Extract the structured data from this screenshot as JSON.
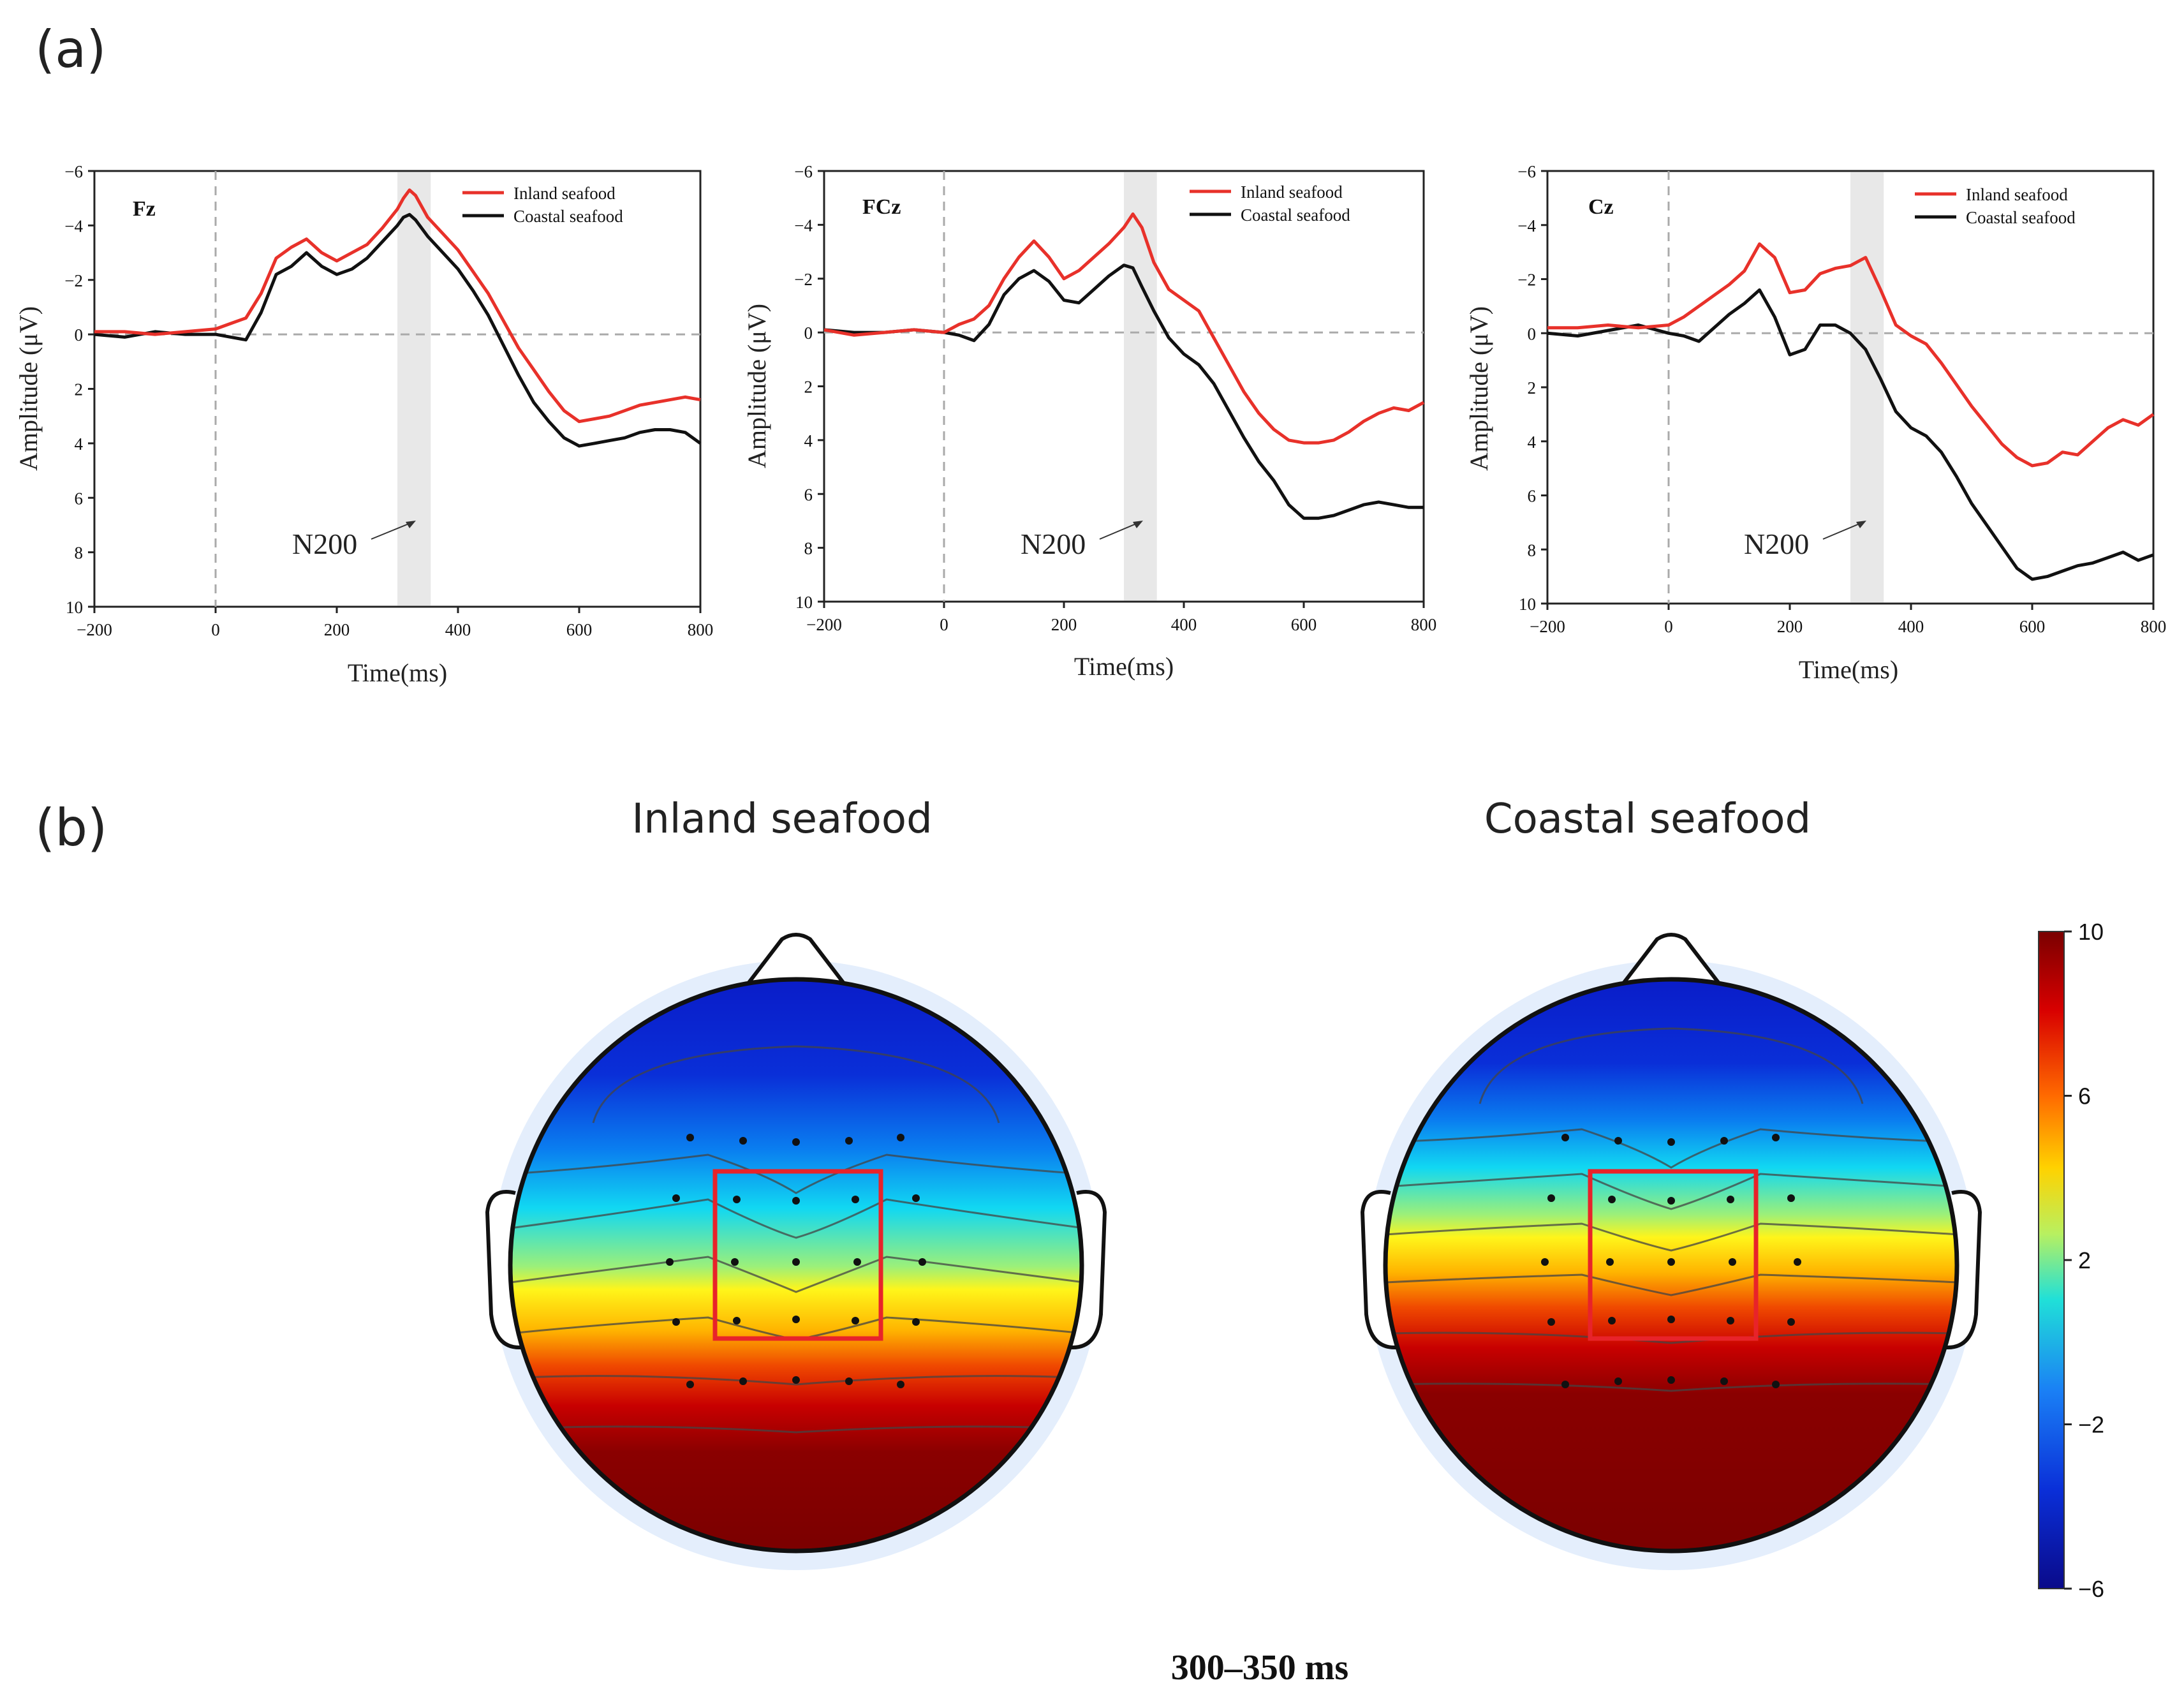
{
  "panel_a_label": "(a)",
  "panel_b_label": "(b)",
  "chart_data": [
    {
      "type": "line",
      "electrode": "Fz",
      "xlabel": "Time(ms)",
      "ylabel": "Amplitude (μV)",
      "xlim": [
        -200,
        800
      ],
      "ylim": [
        -6,
        10
      ],
      "y_inverted": true,
      "x_ticks": [
        "−200",
        "0",
        "200",
        "400",
        "600",
        "800"
      ],
      "y_ticks": [
        "−6",
        "−4",
        "−2",
        "0",
        "2",
        "4",
        "6",
        "8",
        "10"
      ],
      "shaded_window": [
        300,
        355
      ],
      "annotation": "N200",
      "series": [
        {
          "name": "Inland seafood",
          "color": "#e8312a",
          "x": [
            -200,
            -150,
            -100,
            -50,
            0,
            25,
            50,
            75,
            100,
            125,
            150,
            175,
            200,
            225,
            250,
            275,
            300,
            310,
            320,
            330,
            350,
            375,
            400,
            425,
            450,
            475,
            500,
            525,
            550,
            575,
            600,
            625,
            650,
            675,
            700,
            725,
            750,
            775,
            800
          ],
          "y": [
            -0.1,
            -0.1,
            0,
            -0.1,
            -0.2,
            -0.4,
            -0.6,
            -1.5,
            -2.8,
            -3.2,
            -3.5,
            -3.0,
            -2.7,
            -3.0,
            -3.3,
            -3.9,
            -4.6,
            -5.0,
            -5.3,
            -5.1,
            -4.3,
            -3.7,
            -3.1,
            -2.3,
            -1.5,
            -0.5,
            0.5,
            1.3,
            2.1,
            2.8,
            3.2,
            3.1,
            3.0,
            2.8,
            2.6,
            2.5,
            2.4,
            2.3,
            2.4
          ]
        },
        {
          "name": "Coastal seafood",
          "color": "#111111",
          "x": [
            -200,
            -150,
            -100,
            -50,
            0,
            25,
            50,
            75,
            100,
            125,
            150,
            175,
            200,
            225,
            250,
            275,
            300,
            310,
            320,
            330,
            350,
            375,
            400,
            425,
            450,
            475,
            500,
            525,
            550,
            575,
            600,
            625,
            650,
            675,
            700,
            725,
            750,
            775,
            800
          ],
          "y": [
            0,
            0.1,
            -0.1,
            0,
            0,
            0.1,
            0.2,
            -0.8,
            -2.2,
            -2.5,
            -3.0,
            -2.5,
            -2.2,
            -2.4,
            -2.8,
            -3.4,
            -4.0,
            -4.3,
            -4.4,
            -4.2,
            -3.6,
            -3.0,
            -2.4,
            -1.6,
            -0.7,
            0.4,
            1.5,
            2.5,
            3.2,
            3.8,
            4.1,
            4.0,
            3.9,
            3.8,
            3.6,
            3.5,
            3.5,
            3.6,
            4.0
          ]
        }
      ]
    },
    {
      "type": "line",
      "electrode": "FCz",
      "xlabel": "Time(ms)",
      "ylabel": "Amplitude (μV)",
      "xlim": [
        -200,
        800
      ],
      "ylim": [
        -6,
        10
      ],
      "y_inverted": true,
      "x_ticks": [
        "−200",
        "0",
        "200",
        "400",
        "600",
        "800"
      ],
      "y_ticks": [
        "−6",
        "−4",
        "−2",
        "0",
        "2",
        "4",
        "6",
        "8",
        "10"
      ],
      "shaded_window": [
        300,
        355
      ],
      "annotation": "N200",
      "series": [
        {
          "name": "Inland seafood",
          "color": "#e8312a",
          "x": [
            -200,
            -150,
            -100,
            -50,
            0,
            25,
            50,
            75,
            100,
            125,
            150,
            175,
            200,
            225,
            250,
            275,
            300,
            315,
            330,
            350,
            375,
            400,
            425,
            450,
            475,
            500,
            525,
            550,
            575,
            600,
            625,
            650,
            675,
            700,
            725,
            750,
            775,
            800
          ],
          "y": [
            -0.1,
            0.1,
            0,
            -0.1,
            0,
            -0.3,
            -0.5,
            -1.0,
            -2.0,
            -2.8,
            -3.4,
            -2.8,
            -2.0,
            -2.3,
            -2.8,
            -3.3,
            -3.9,
            -4.4,
            -3.9,
            -2.6,
            -1.6,
            -1.2,
            -0.8,
            0.2,
            1.2,
            2.2,
            3.0,
            3.6,
            4.0,
            4.1,
            4.1,
            4.0,
            3.7,
            3.3,
            3.0,
            2.8,
            2.9,
            2.6
          ]
        },
        {
          "name": "Coastal seafood",
          "color": "#111111",
          "x": [
            -200,
            -150,
            -100,
            -50,
            0,
            25,
            50,
            75,
            100,
            125,
            150,
            175,
            200,
            225,
            250,
            275,
            300,
            315,
            330,
            350,
            375,
            400,
            425,
            450,
            475,
            500,
            525,
            550,
            575,
            600,
            625,
            650,
            675,
            700,
            725,
            750,
            775,
            800
          ],
          "y": [
            -0.1,
            0,
            0,
            -0.1,
            0,
            0.1,
            0.3,
            -0.3,
            -1.4,
            -2.0,
            -2.3,
            -1.9,
            -1.2,
            -1.1,
            -1.6,
            -2.1,
            -2.5,
            -2.4,
            -1.7,
            -0.8,
            0.2,
            0.8,
            1.2,
            1.9,
            2.9,
            3.9,
            4.8,
            5.5,
            6.4,
            6.9,
            6.9,
            6.8,
            6.6,
            6.4,
            6.3,
            6.4,
            6.5,
            6.5
          ]
        }
      ]
    },
    {
      "type": "line",
      "electrode": "Cz",
      "xlabel": "Time(ms)",
      "ylabel": "Amplitude (μV)",
      "xlim": [
        -200,
        800
      ],
      "ylim": [
        -6,
        10
      ],
      "y_inverted": true,
      "x_ticks": [
        "−200",
        "0",
        "200",
        "400",
        "600",
        "800"
      ],
      "y_ticks": [
        "−6",
        "−4",
        "−2",
        "0",
        "2",
        "4",
        "6",
        "8",
        "10"
      ],
      "shaded_window": [
        300,
        355
      ],
      "annotation": "N200",
      "series": [
        {
          "name": "Inland seafood",
          "color": "#e8312a",
          "x": [
            -200,
            -150,
            -100,
            -50,
            0,
            25,
            50,
            75,
            100,
            125,
            150,
            175,
            200,
            225,
            250,
            275,
            300,
            325,
            350,
            375,
            400,
            425,
            450,
            475,
            500,
            525,
            550,
            575,
            600,
            625,
            650,
            675,
            700,
            725,
            750,
            775,
            800
          ],
          "y": [
            -0.2,
            -0.2,
            -0.3,
            -0.2,
            -0.3,
            -0.6,
            -1.0,
            -1.4,
            -1.8,
            -2.3,
            -3.3,
            -2.8,
            -1.5,
            -1.6,
            -2.2,
            -2.4,
            -2.5,
            -2.8,
            -1.6,
            -0.3,
            0.1,
            0.4,
            1.1,
            1.9,
            2.7,
            3.4,
            4.1,
            4.6,
            4.9,
            4.8,
            4.4,
            4.5,
            4.0,
            3.5,
            3.2,
            3.4,
            3.0
          ]
        },
        {
          "name": "Coastal seafood",
          "color": "#111111",
          "x": [
            -200,
            -150,
            -100,
            -50,
            0,
            25,
            50,
            75,
            100,
            125,
            150,
            175,
            200,
            225,
            250,
            275,
            300,
            325,
            350,
            375,
            400,
            425,
            450,
            475,
            500,
            525,
            550,
            575,
            600,
            625,
            650,
            675,
            700,
            725,
            750,
            775,
            800
          ],
          "y": [
            0,
            0.1,
            -0.1,
            -0.3,
            0,
            0.1,
            0.3,
            -0.2,
            -0.7,
            -1.1,
            -1.6,
            -0.6,
            0.8,
            0.6,
            -0.3,
            -0.3,
            0,
            0.6,
            1.7,
            2.9,
            3.5,
            3.8,
            4.4,
            5.3,
            6.3,
            7.1,
            7.9,
            8.7,
            9.1,
            9.0,
            8.8,
            8.6,
            8.5,
            8.3,
            8.1,
            8.4,
            8.2
          ]
        }
      ]
    },
    {
      "type": "heatmap",
      "subtype": "scalp-topography",
      "title": "Inland seafood",
      "value_range": [
        -6,
        10
      ],
      "frontal_value": -5,
      "posterior_value": 10
    },
    {
      "type": "heatmap",
      "subtype": "scalp-topography",
      "title": "Coastal seafood",
      "value_range": [
        -6,
        10
      ],
      "frontal_value": -5,
      "posterior_value": 10
    }
  ],
  "colorbar": {
    "ticks": [
      "10",
      "6",
      "2",
      "−2",
      "−6"
    ],
    "tick_values": [
      10,
      6,
      2,
      -2,
      -6
    ],
    "range": [
      -6,
      10
    ]
  },
  "time_window": "300–350 ms"
}
